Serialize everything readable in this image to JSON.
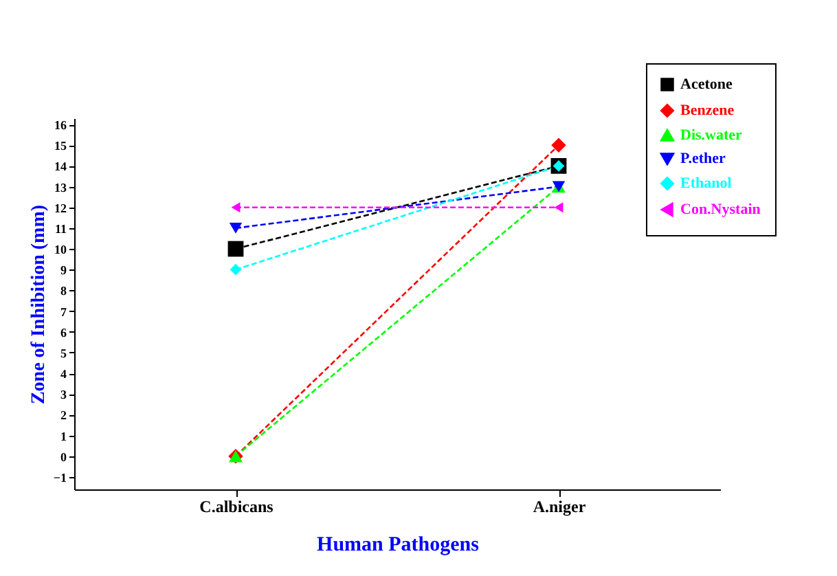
{
  "chart_data": {
    "type": "line",
    "xlabel": "Human Pathogens",
    "ylabel": "Zone of Inhibition (mm)",
    "categories": [
      "C.albicans",
      "A.niger"
    ],
    "series": [
      {
        "name": "Acetone",
        "color": "#000000",
        "marker": "square",
        "values": [
          10,
          14
        ]
      },
      {
        "name": "Benzene",
        "color": "#ff0000",
        "marker": "diamond",
        "values": [
          0,
          15
        ]
      },
      {
        "name": "Dis.water",
        "color": "#00ff00",
        "marker": "triangle",
        "values": [
          0,
          13
        ]
      },
      {
        "name": "P.ether",
        "color": "#0000ff",
        "marker": "triangle-down",
        "values": [
          11,
          13
        ]
      },
      {
        "name": "Ethanol",
        "color": "#00ffff",
        "marker": "diamond",
        "values": [
          9,
          14
        ]
      },
      {
        "name": "Con.Nystain",
        "color": "#ff00ff",
        "marker": "triangle-left",
        "values": [
          12,
          12
        ]
      }
    ],
    "ylim": [
      -1.6,
      16.3
    ],
    "yticks": [
      -1,
      0,
      1,
      2,
      3,
      4,
      5,
      6,
      7,
      8,
      9,
      10,
      11,
      12,
      13,
      14,
      15,
      16
    ],
    "grid": false,
    "legend": "top right",
    "line_style": "dashed"
  }
}
